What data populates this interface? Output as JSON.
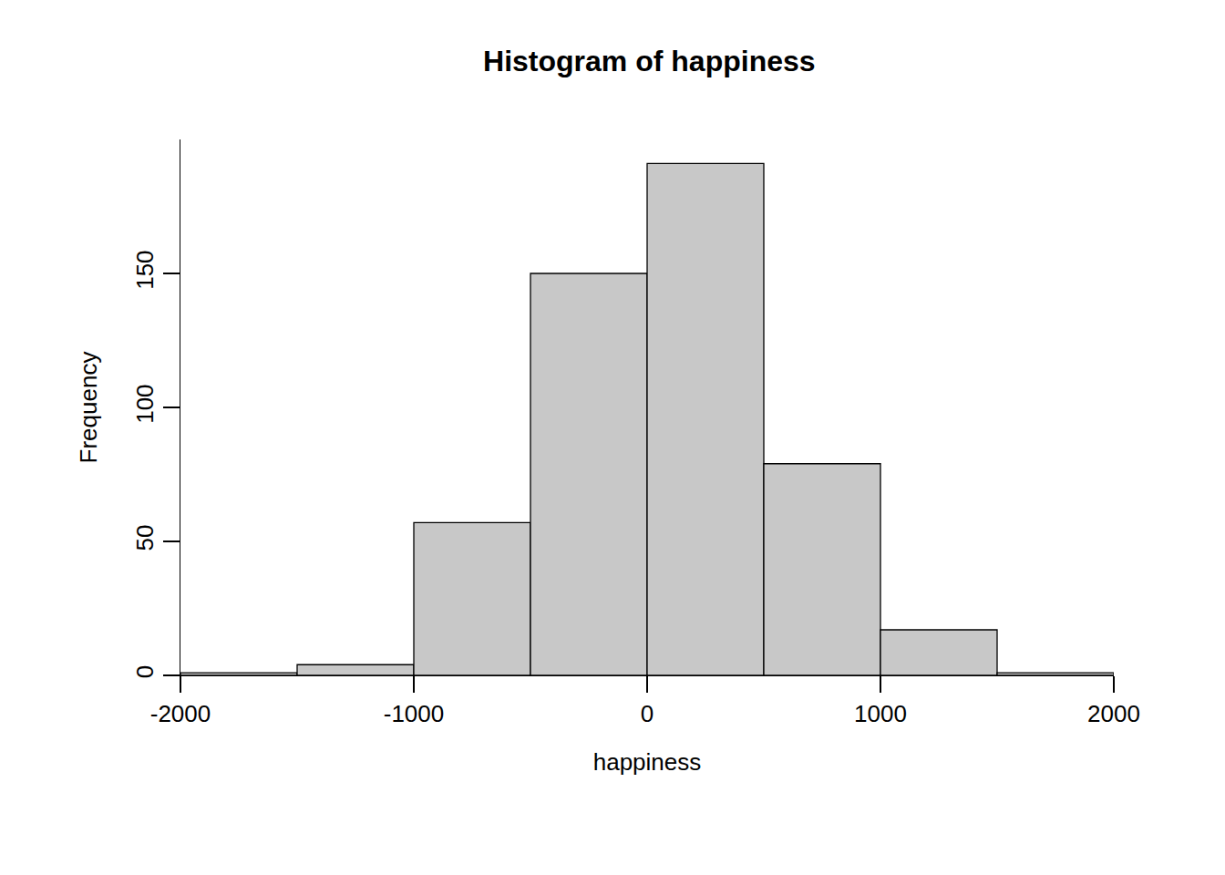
{
  "chart_data": {
    "type": "histogram",
    "title": "Histogram of happiness",
    "x_label": "happiness",
    "y_label": "Frequency",
    "bins": [
      -2000,
      -1500,
      -1000,
      -500,
      0,
      500,
      1000,
      1500,
      2000
    ],
    "values": [
      1,
      4,
      57,
      150,
      191,
      79,
      17,
      1
    ],
    "color": "#c8c8c8",
    "xlim": [
      -2000,
      2000
    ],
    "xticks": [
      -2000,
      -1000,
      0,
      1000,
      2000
    ],
    "ylim": [
      0,
      200
    ],
    "yticks": [
      0,
      50,
      100,
      150
    ],
    "grid": false
  }
}
